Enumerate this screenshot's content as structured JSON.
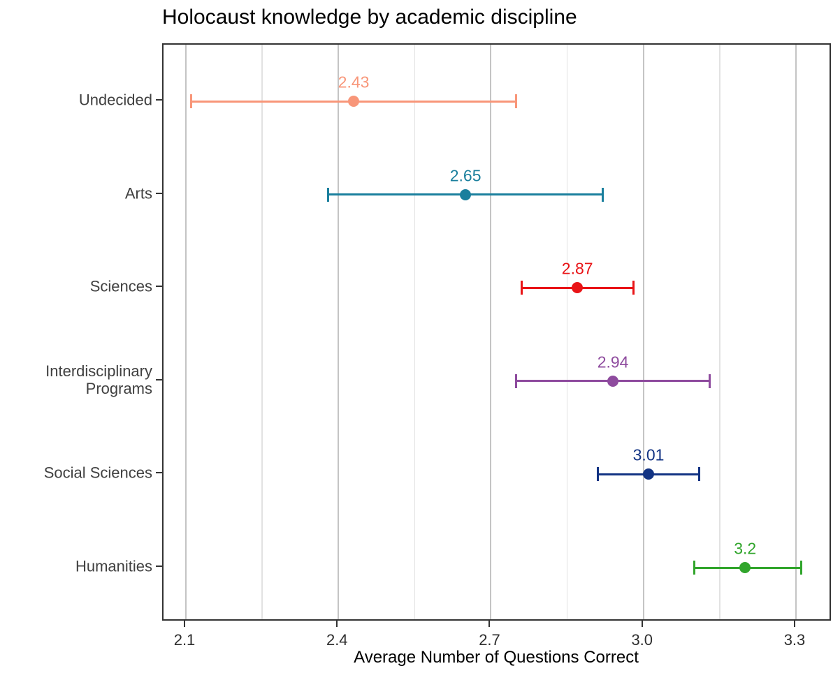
{
  "chart_data": {
    "type": "scatter",
    "variant": "horizontal-dot-plot-with-error-bars",
    "title": "Holocaust knowledge by academic discipline",
    "xlabel": "Average Number of Questions Correct",
    "ylabel": "",
    "legend": false,
    "grid": true,
    "xlim": [
      2.056,
      3.3715
    ],
    "x_ticks": [
      2.1,
      2.4,
      2.7,
      3.0,
      3.3
    ],
    "x_tick_labels": [
      "2.1",
      "2.4",
      "2.7",
      "3.0",
      "3.3"
    ],
    "x_minor_ticks": [
      2.25,
      2.55,
      2.85,
      3.15
    ],
    "categories": [
      "Undecided",
      "Arts",
      "Sciences",
      "Interdisciplinary Programs",
      "Social Sciences",
      "Humanities"
    ],
    "series": [
      {
        "label": "Undecided",
        "label_lines": [
          "Undecided"
        ],
        "value": 2.43,
        "value_label": "2.43",
        "ci_low": 2.11,
        "ci_high": 2.75,
        "color": "#F89679"
      },
      {
        "label": "Arts",
        "label_lines": [
          "Arts"
        ],
        "value": 2.65,
        "value_label": "2.65",
        "ci_low": 2.38,
        "ci_high": 2.92,
        "color": "#1A7F9D"
      },
      {
        "label": "Sciences",
        "label_lines": [
          "Sciences"
        ],
        "value": 2.87,
        "value_label": "2.87",
        "ci_low": 2.76,
        "ci_high": 2.98,
        "color": "#E91417"
      },
      {
        "label": "Interdisciplinary Programs",
        "label_lines": [
          "Interdisciplinary",
          "Programs"
        ],
        "value": 2.94,
        "value_label": "2.94",
        "ci_low": 2.75,
        "ci_high": 3.13,
        "color": "#8E4B9E"
      },
      {
        "label": "Social Sciences",
        "label_lines": [
          "Social Sciences"
        ],
        "value": 3.01,
        "value_label": "3.01",
        "ci_low": 2.91,
        "ci_high": 3.11,
        "color": "#123383"
      },
      {
        "label": "Humanities",
        "label_lines": [
          "Humanities"
        ],
        "value": 3.2,
        "value_label": "3.2",
        "ci_low": 3.1,
        "ci_high": 3.31,
        "color": "#31A52C"
      }
    ],
    "colors": {
      "background": "#FFFFFF",
      "panel_border": "#333333",
      "grid_major": "#C4C4C4",
      "grid_minor": "#E2E2E2",
      "axis_tick": "#333333",
      "axis_text": "#2E2E2E",
      "category_text": "#404040",
      "title_text": "#000000"
    }
  }
}
